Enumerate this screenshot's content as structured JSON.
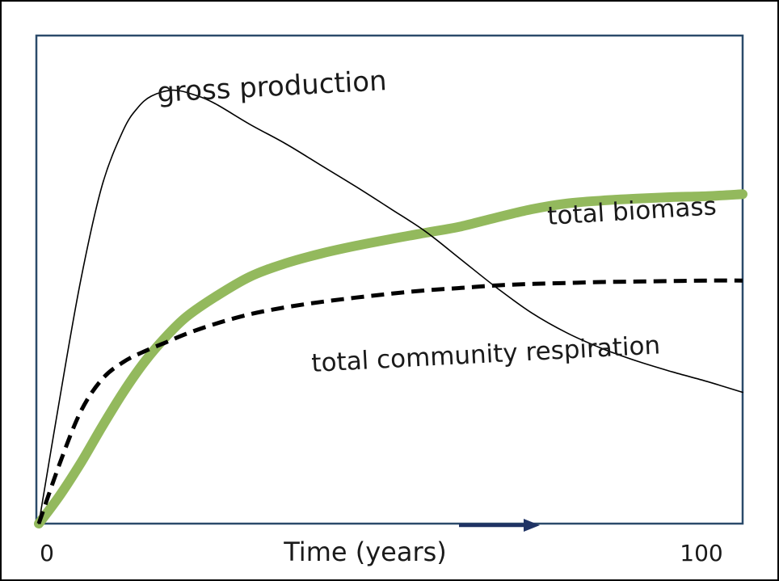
{
  "chart_data": {
    "type": "line",
    "title": "",
    "xlabel": "Time (years)",
    "ylabel": "",
    "xlim": [
      0,
      100
    ],
    "ylim": [
      0,
      100
    ],
    "grid": false,
    "legend": "none",
    "x_tick_labels": [
      "0",
      "100"
    ],
    "x_ticks": [
      0,
      100
    ],
    "series": [
      {
        "name": "gross production",
        "style": "thin-solid",
        "color": "#000000",
        "x": [
          0,
          3,
          6,
          9,
          12,
          14,
          16,
          19,
          22,
          25,
          30,
          35,
          40,
          45,
          50,
          55,
          60,
          65,
          70,
          75,
          80,
          85,
          90,
          95,
          100
        ],
        "y": [
          0,
          25.8,
          50.2,
          69.3,
          80.6,
          85.1,
          87.6,
          88.8,
          87.9,
          86.1,
          81.8,
          77.9,
          73.5,
          69.1,
          64.5,
          59.8,
          54.1,
          48.4,
          43.2,
          39.1,
          35.9,
          33.3,
          31.1,
          29.1,
          26.9
        ]
      },
      {
        "name": "total biomass",
        "style": "thick",
        "color": "#93b95d",
        "x": [
          0,
          3,
          6,
          9,
          12,
          15,
          18,
          21,
          25,
          30,
          35,
          40,
          45,
          50,
          55,
          60,
          65,
          70,
          75,
          80,
          85,
          90,
          95,
          100
        ],
        "y": [
          0,
          5.8,
          12.5,
          19.9,
          26.9,
          33.1,
          38.2,
          42.4,
          46.4,
          50.6,
          53.3,
          55.3,
          56.9,
          58.3,
          59.6,
          60.9,
          62.7,
          64.4,
          65.6,
          66.2,
          66.6,
          66.9,
          67.1,
          67.5
        ]
      },
      {
        "name": "total community respiration",
        "style": "dashed",
        "color": "#000000",
        "x": [
          0,
          3,
          6,
          9,
          12,
          15,
          18,
          21,
          25,
          30,
          35,
          40,
          45,
          50,
          55,
          60,
          65,
          70,
          75,
          80,
          85,
          90,
          95,
          100
        ],
        "y": [
          0,
          12.4,
          23.1,
          29.6,
          33.1,
          35.3,
          37.1,
          38.9,
          40.9,
          42.9,
          44.3,
          45.4,
          46.3,
          47.1,
          47.8,
          48.3,
          48.8,
          49.1,
          49.3,
          49.5,
          49.6,
          49.7,
          49.8,
          49.8
        ]
      }
    ],
    "annotations": [
      {
        "text": "gross production"
      },
      {
        "text": "total biomass"
      },
      {
        "text": "total community respiration"
      }
    ],
    "arrow": {
      "direction": "right",
      "color": "#1f3364"
    }
  }
}
